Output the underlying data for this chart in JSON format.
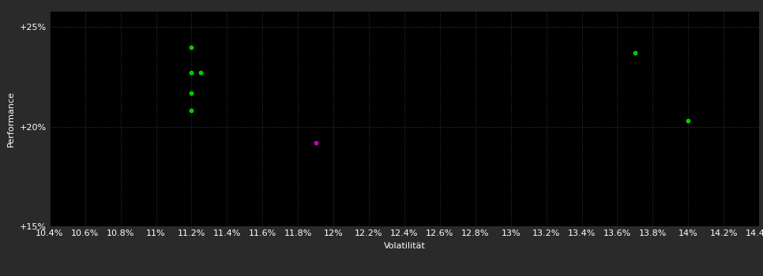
{
  "background_color": "#2a2a2a",
  "plot_bg_color": "#000000",
  "grid_color": "#404040",
  "text_color": "#ffffff",
  "xlabel": "Volatilität",
  "ylabel": "Performance",
  "xlim": [
    0.104,
    0.144
  ],
  "ylim": [
    0.15,
    0.258
  ],
  "xtick_values": [
    0.104,
    0.106,
    0.108,
    0.11,
    0.112,
    0.114,
    0.116,
    0.118,
    0.12,
    0.122,
    0.124,
    0.126,
    0.128,
    0.13,
    0.132,
    0.134,
    0.136,
    0.138,
    0.14,
    0.142,
    0.144
  ],
  "xtick_labels": [
    "10.4%",
    "10.6%",
    "10.8%",
    "11%",
    "11.2%",
    "11.4%",
    "11.6%",
    "11.8%",
    "12%",
    "12.2%",
    "12.4%",
    "12.6%",
    "12.8%",
    "13%",
    "13.2%",
    "13.4%",
    "13.6%",
    "13.8%",
    "14%",
    "14.2%",
    "14.4%"
  ],
  "yticks": [
    0.15,
    0.2,
    0.25
  ],
  "ytick_labels": [
    "+15%",
    "+20%",
    "+25%"
  ],
  "green_points": [
    [
      0.112,
      0.24
    ],
    [
      0.112,
      0.227
    ],
    [
      0.1125,
      0.227
    ],
    [
      0.112,
      0.217
    ],
    [
      0.112,
      0.208
    ],
    [
      0.137,
      0.237
    ],
    [
      0.14,
      0.203
    ]
  ],
  "magenta_points": [
    [
      0.119,
      0.192
    ]
  ],
  "green_color": "#00cc00",
  "magenta_color": "#bb00bb",
  "marker_size": 18,
  "label_font_size": 8,
  "tick_font_size": 8
}
